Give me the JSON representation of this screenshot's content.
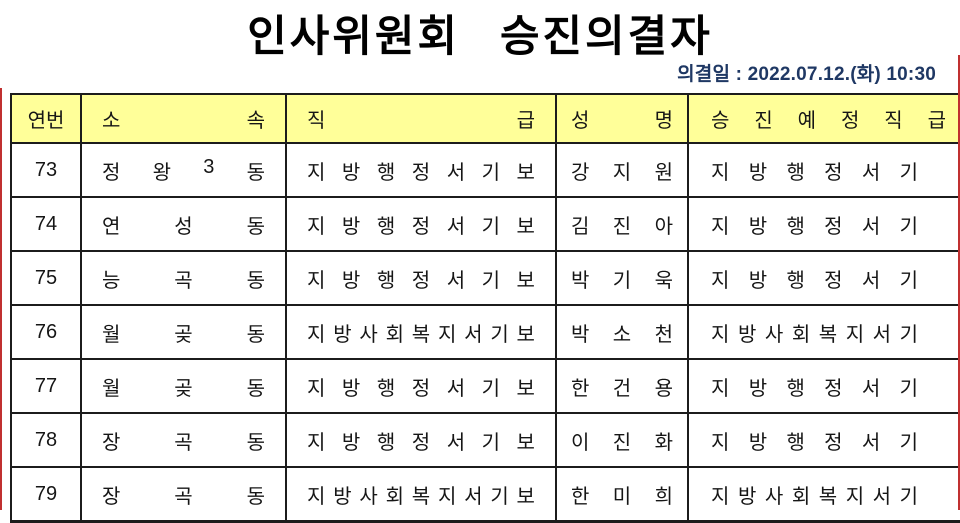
{
  "title": "인사위원회 승진의결자",
  "meta": {
    "date_line": "의결일 : 2022.07.12.(화) 10:30"
  },
  "table": {
    "columns": [
      "연번",
      "소속",
      "직급",
      "성명",
      "승진예정직급"
    ],
    "rows": [
      {
        "no": "73",
        "dept": "정왕3동",
        "rank": "지방행정서기보",
        "name": "강지원",
        "promotion_rank": "지방행정서기"
      },
      {
        "no": "74",
        "dept": "연성동",
        "rank": "지방행정서기보",
        "name": "김진아",
        "promotion_rank": "지방행정서기"
      },
      {
        "no": "75",
        "dept": "능곡동",
        "rank": "지방행정서기보",
        "name": "박기욱",
        "promotion_rank": "지방행정서기"
      },
      {
        "no": "76",
        "dept": "월곶동",
        "rank": "지방사회복지서기보",
        "name": "박소천",
        "promotion_rank": "지방사회복지서기"
      },
      {
        "no": "77",
        "dept": "월곶동",
        "rank": "지방행정서기보",
        "name": "한건용",
        "promotion_rank": "지방행정서기"
      },
      {
        "no": "78",
        "dept": "장곡동",
        "rank": "지방행정서기보",
        "name": "이진화",
        "promotion_rank": "지방행정서기"
      },
      {
        "no": "79",
        "dept": "장곡동",
        "rank": "지방사회복지서기보",
        "name": "한미희",
        "promotion_rank": "지방사회복지서기"
      }
    ]
  },
  "colors": {
    "header_bg": "#FFFF99",
    "border": "#1c1c1c",
    "date_text": "#1F3864",
    "edge_mark": "#c03030"
  }
}
